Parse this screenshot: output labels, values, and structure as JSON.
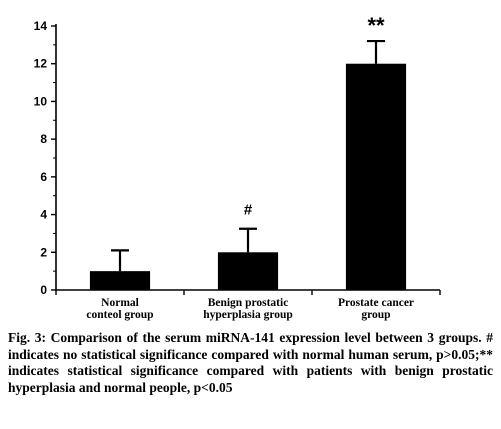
{
  "chart_data": {
    "type": "bar",
    "categories": [
      [
        "Normal",
        "conteol group"
      ],
      [
        "Benign prostatic",
        "hyperplasia group"
      ],
      [
        "Prostate cancer",
        "group"
      ]
    ],
    "values": [
      1.0,
      2.0,
      12.0
    ],
    "error": [
      1.1,
      1.25,
      1.2
    ],
    "annotations": [
      "",
      "#",
      "**"
    ],
    "ylim": [
      0,
      14
    ],
    "yticks": [
      0,
      2,
      4,
      6,
      8,
      10,
      12,
      14
    ],
    "xlabel": "",
    "ylabel": "",
    "bar_color": "#000000"
  },
  "caption": "Fig. 3: Comparison of the serum miRNA-141 expression level between 3 groups. # indicates no statistical significance compared with normal human serum, p>0.05;** indicates statistical significance compared with patients with benign prostatic hyperplasia and normal people, p<0.05"
}
